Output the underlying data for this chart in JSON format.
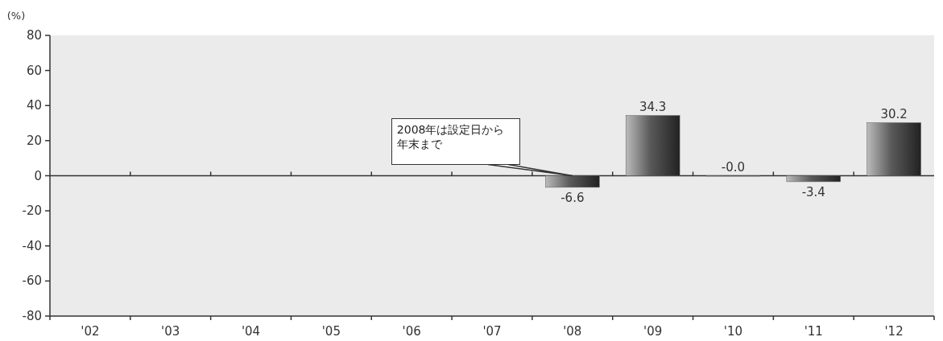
{
  "chart_data": {
    "type": "bar",
    "ylabel": "(%)",
    "categories": [
      "'02",
      "'03",
      "'04",
      "'05",
      "'06",
      "'07",
      "'08",
      "'09",
      "'10",
      "'11",
      "'12"
    ],
    "values": [
      null,
      null,
      null,
      null,
      null,
      null,
      -6.6,
      34.3,
      -0.0,
      -3.4,
      30.2
    ],
    "value_labels": [
      null,
      null,
      null,
      null,
      null,
      null,
      "-6.6",
      "34.3",
      "-0.0",
      "-3.4",
      "30.2"
    ],
    "color": "#5a5a5a",
    "ylim": [
      -80,
      80
    ],
    "yticks": [
      -80,
      -60,
      -40,
      -20,
      0,
      20,
      40,
      60,
      80
    ],
    "annotations": [
      {
        "text": "2008年は設定日から年末まで",
        "x": "'08",
        "y": 0
      }
    ]
  }
}
